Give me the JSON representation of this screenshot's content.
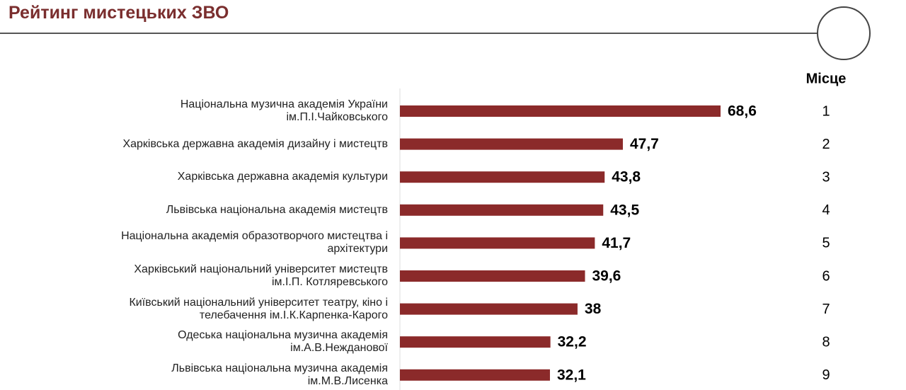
{
  "chart_data": {
    "type": "bar",
    "orientation": "horizontal",
    "title": "Рейтинг мистецьких ЗВО",
    "categories": [
      "Національна музична  академія України\nім.П.І.Чайковського",
      "Харківська державна академія дизайну  і мистецтв",
      "Харківська державна академія культури",
      "Львівська національна академія мистецтв",
      "Національна академія образотворчого мистецтва і\nархітектури",
      "Харківський національний  університет мистецтв\nім.І.П.  Котляревського",
      "Київський  національний  університет  театру,  кіно і\nтелебачення  ім.І.К.Карпенка-Карого",
      "Одеська національна  музична  академія\nім.А.В.Нежданової",
      "Львівська національна музична  академія\nім.М.В.Лисенка"
    ],
    "values": [
      68.6,
      47.7,
      43.8,
      43.5,
      41.7,
      39.6,
      38,
      32.2,
      32.1
    ],
    "value_labels": [
      "68,6",
      "47,7",
      "43,8",
      "43,5",
      "41,7",
      "39,6",
      "38",
      "32,2",
      "32,1"
    ],
    "color": "#8b2a2a",
    "rank_header": "Місце",
    "ranks": [
      1,
      2,
      3,
      4,
      5,
      6,
      7,
      8,
      9
    ]
  }
}
